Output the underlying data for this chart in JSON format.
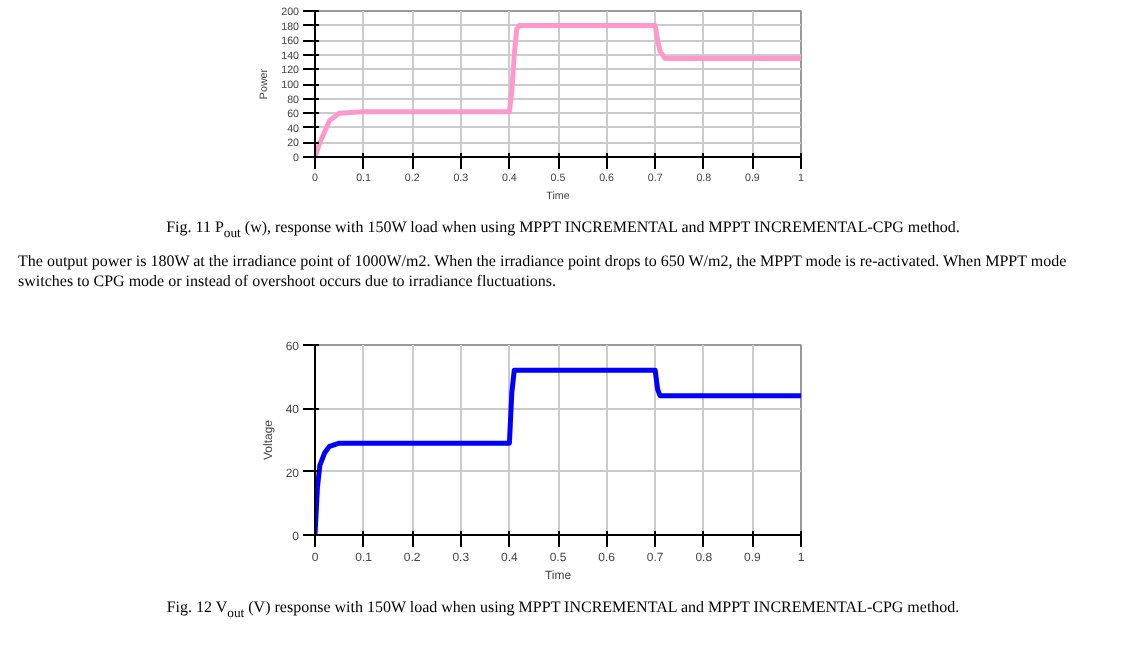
{
  "chart_data": [
    {
      "type": "line",
      "ylabel": "Power",
      "xlabel": "Time",
      "xlim": [
        0,
        1
      ],
      "ylim": [
        0,
        200
      ],
      "xticks": [
        0,
        0.1,
        0.2,
        0.3,
        0.4,
        0.5,
        0.6,
        0.7,
        0.8,
        0.9,
        1
      ],
      "yticks": [
        0,
        20,
        40,
        60,
        80,
        100,
        120,
        140,
        160,
        180,
        200
      ],
      "grid": true,
      "series": [
        {
          "color": "#ff99cc",
          "x": [
            0,
            0.01,
            0.03,
            0.05,
            0.1,
            0.2,
            0.3,
            0.4,
            0.405,
            0.41,
            0.415,
            0.42,
            0.5,
            0.6,
            0.7,
            0.705,
            0.71,
            0.72,
            0.8,
            0.9,
            1
          ],
          "values": [
            0,
            20,
            50,
            60,
            62,
            62,
            62,
            62,
            90,
            140,
            175,
            180,
            180,
            180,
            180,
            160,
            145,
            135,
            135,
            135,
            135
          ]
        }
      ],
      "annotations": [
        "Fig. 11 P$_{out}$ (w), response with 150W load when using MPPT INCREMENTAL and MPPT INCREMENTAL-CPG method.",
        "The output power is 180W at the irradiance point of 1000W/m2. When the irradiance point drops to 650 W/m2, the MPPT mode is re-activated. When MPPT mode switches to CPG mode or instead of overshoot occurs due to irradiance fluctuations."
      ]
    },
    {
      "type": "line",
      "ylabel": "Voltage",
      "xlabel": "Time",
      "xlim": [
        0,
        1
      ],
      "ylim": [
        0,
        60
      ],
      "xticks": [
        0,
        0.1,
        0.2,
        0.3,
        0.4,
        0.5,
        0.6,
        0.7,
        0.8,
        0.9,
        1
      ],
      "yticks": [
        0,
        20,
        40,
        60
      ],
      "grid": true,
      "series": [
        {
          "color": "#0000ff",
          "x": [
            0,
            0.005,
            0.01,
            0.02,
            0.03,
            0.05,
            0.1,
            0.2,
            0.3,
            0.4,
            0.405,
            0.41,
            0.5,
            0.6,
            0.7,
            0.705,
            0.71,
            0.8,
            0.9,
            1
          ],
          "values": [
            0,
            15,
            22,
            26,
            28,
            29,
            29,
            29,
            29,
            29,
            45,
            52,
            52,
            52,
            52,
            46,
            44,
            44,
            44,
            44
          ]
        }
      ],
      "annotations": [
        "Fig. 12 V$_{out}$ (V) response with 150W load when using MPPT INCREMENTAL and MPPT INCREMENTAL-CPG method."
      ]
    }
  ]
}
